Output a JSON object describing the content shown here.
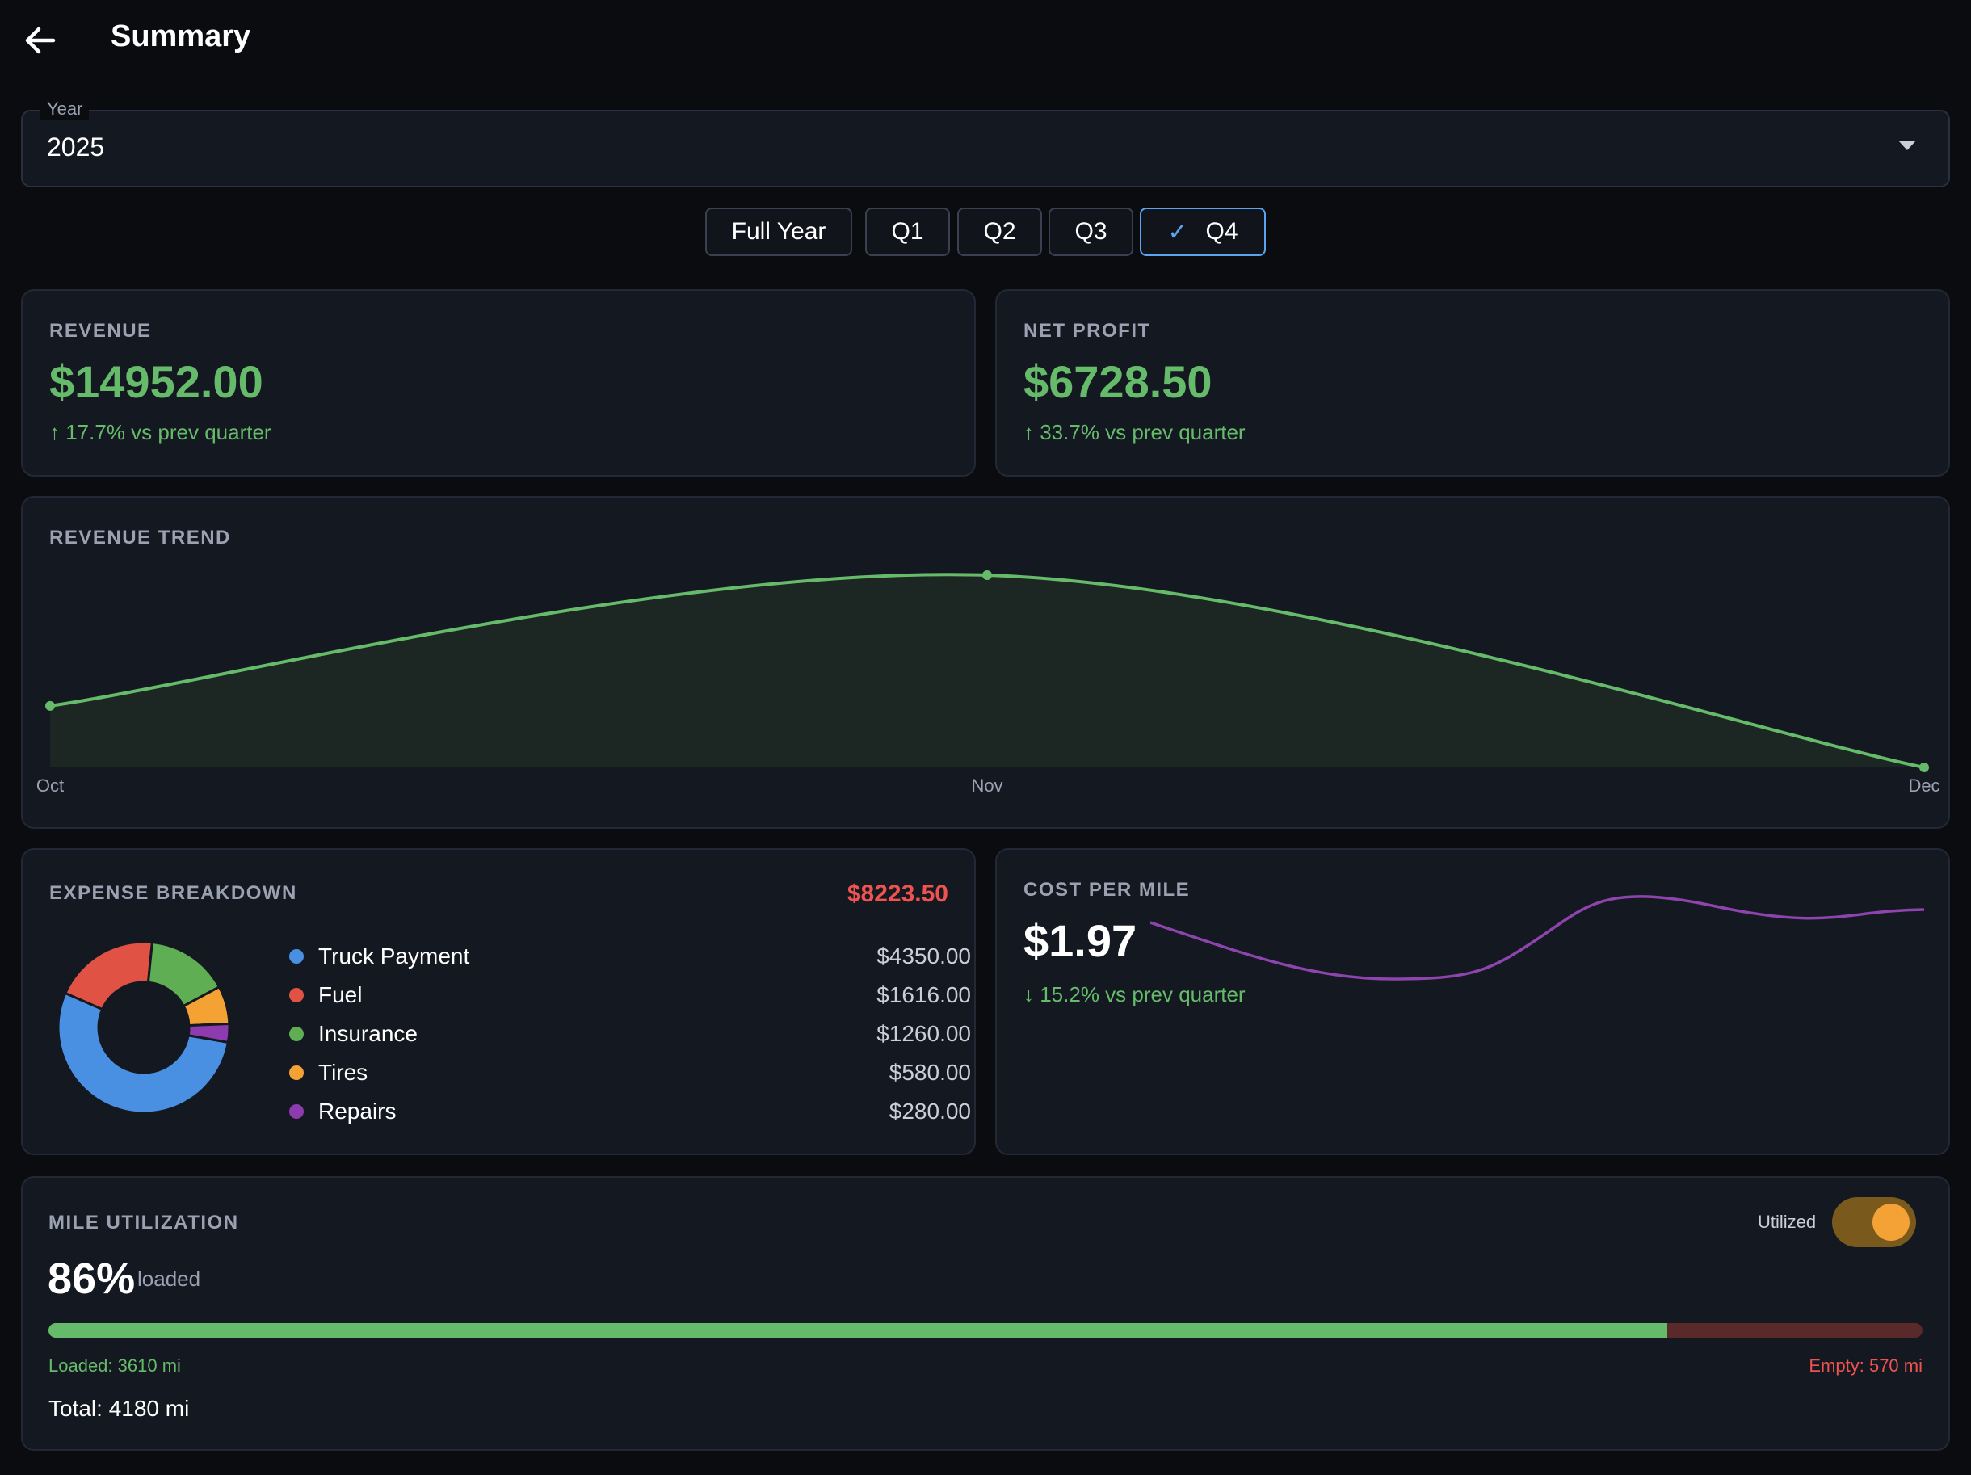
{
  "header": {
    "title": "Summary",
    "back_icon": "arrow-left-icon"
  },
  "year_select": {
    "label": "Year",
    "value": "2025"
  },
  "periods": [
    {
      "label": "Full Year",
      "selected": false
    },
    {
      "label": "Q1",
      "selected": false
    },
    {
      "label": "Q2",
      "selected": false
    },
    {
      "label": "Q3",
      "selected": false
    },
    {
      "label": "Q4",
      "selected": true
    }
  ],
  "revenue": {
    "title": "REVENUE",
    "value": "$14952.00",
    "delta": "↑ 17.7% vs prev quarter"
  },
  "net_profit": {
    "title": "NET PROFIT",
    "value": "$6728.50",
    "delta": "↑ 33.7% vs prev quarter"
  },
  "revenue_trend": {
    "title": "REVENUE TREND"
  },
  "chart_data": {
    "type": "area",
    "categories": [
      "Oct",
      "Nov",
      "Dec"
    ],
    "values": [
      3.2,
      10,
      0
    ],
    "note": "relative values; no y-axis printed",
    "color": "#66bb6a",
    "grid": false
  },
  "expenses": {
    "title": "EXPENSE BREAKDOWN",
    "total": "$8223.50",
    "items": [
      {
        "name": "Truck Payment",
        "value": "$4350.00",
        "amount": 4350,
        "color": "#4a90e2"
      },
      {
        "name": "Fuel",
        "value": "$1616.00",
        "amount": 1616,
        "color": "#e05243"
      },
      {
        "name": "Insurance",
        "value": "$1260.00",
        "amount": 1260,
        "color": "#5fae54"
      },
      {
        "name": "Tires",
        "value": "$580.00",
        "amount": 580,
        "color": "#f5a234"
      },
      {
        "name": "Repairs",
        "value": "$280.00",
        "amount": 280,
        "color": "#8e3bb0"
      }
    ]
  },
  "cost_per_mile": {
    "title": "COST PER MILE",
    "value": "$1.97",
    "delta": "↓ 15.2% vs prev quarter",
    "sparkline_color": "#8e44ad"
  },
  "mile_utilization": {
    "title": "MILE UTILIZATION",
    "percent": "86%",
    "percent_label": "loaded",
    "toggle_label": "Utilized",
    "toggle_on": true,
    "loaded_fraction": 0.8636,
    "loaded_text": "Loaded: 3610 mi",
    "empty_text": "Empty: 570 mi",
    "total_text": "Total: 4180 mi"
  }
}
